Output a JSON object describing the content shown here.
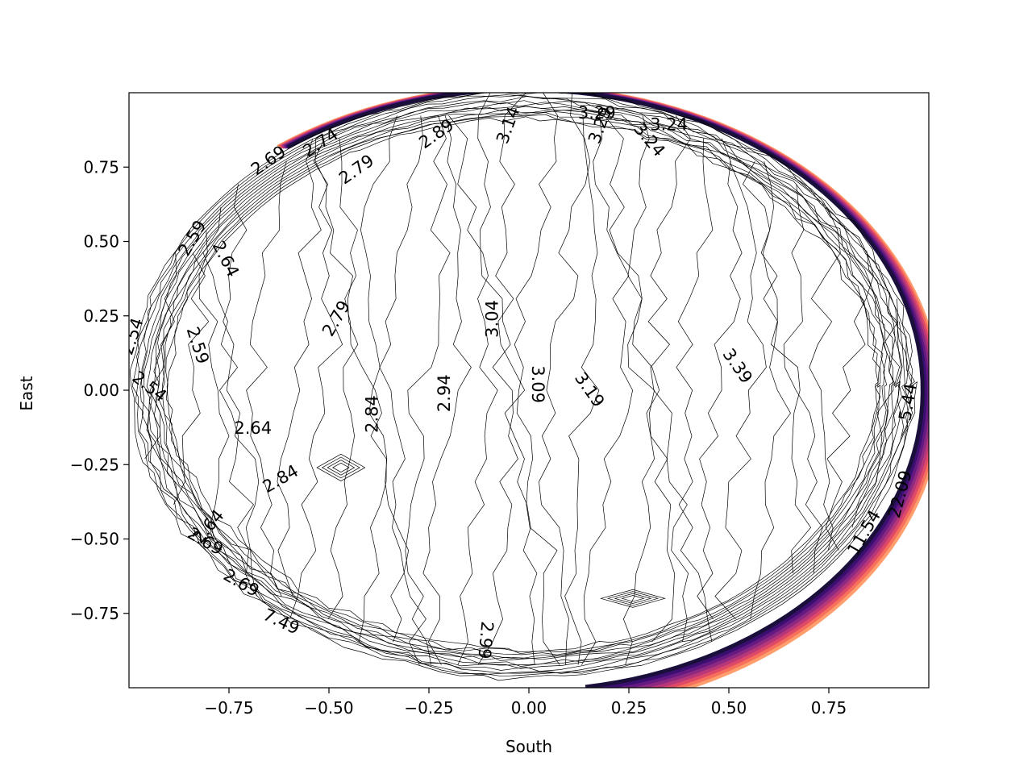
{
  "chart_data": {
    "type": "contour",
    "title": "",
    "xlabel": "South",
    "ylabel": "East",
    "xlim": [
      -1.0,
      1.0
    ],
    "ylim": [
      -1.0,
      1.0
    ],
    "x_ticks": [
      -0.75,
      -0.5,
      -0.25,
      0.0,
      0.25,
      0.5,
      0.75
    ],
    "x_tick_labels": [
      "−0.75",
      "−0.50",
      "−0.25",
      "0.00",
      "0.25",
      "0.50",
      "0.75"
    ],
    "y_ticks": [
      0.75,
      0.5,
      0.25,
      0.0,
      -0.25,
      -0.5,
      -0.75
    ],
    "y_tick_labels": [
      "0.75",
      "0.50",
      "0.25",
      "0.00",
      "−0.25",
      "−0.50",
      "−0.75"
    ],
    "grid": false,
    "legend": "none",
    "colormap": "magma",
    "line_color": "#000000",
    "edge_colors": [
      "#1a0f3a",
      "#3b0f70",
      "#641a80",
      "#8c2981",
      "#b73779",
      "#de4968",
      "#f7705c",
      "#fe9f6d"
    ],
    "contour_levels": [
      {
        "value": 2.54,
        "label": "2.54"
      },
      {
        "value": 2.59,
        "label": "2.59"
      },
      {
        "value": 2.64,
        "label": "2.64"
      },
      {
        "value": 2.69,
        "label": "2.69"
      },
      {
        "value": 2.74,
        "label": "2.74"
      },
      {
        "value": 2.79,
        "label": "2.79"
      },
      {
        "value": 2.84,
        "label": "2.84"
      },
      {
        "value": 2.89,
        "label": "2.89"
      },
      {
        "value": 2.94,
        "label": "2.94"
      },
      {
        "value": 2.99,
        "label": "2.99"
      },
      {
        "value": 3.04,
        "label": "3.04"
      },
      {
        "value": 3.09,
        "label": "3.09"
      },
      {
        "value": 3.14,
        "label": "3.14"
      },
      {
        "value": 3.19,
        "label": "3.19"
      },
      {
        "value": 3.24,
        "label": "3.24"
      },
      {
        "value": 3.29,
        "label": "3.29"
      },
      {
        "value": 3.39,
        "label": "3.39"
      },
      {
        "value": 5.44,
        "label": "5.44"
      },
      {
        "value": 7.49,
        "label": "7.49"
      },
      {
        "value": 11.54,
        "label": "11.54"
      },
      {
        "value": 22.09,
        "label": "22.09"
      }
    ],
    "contour_labels": [
      {
        "text": "2.54",
        "x": -0.99,
        "y": 0.18,
        "angle": -72
      },
      {
        "text": "2.54",
        "x": -0.95,
        "y": 0.01,
        "angle": 38
      },
      {
        "text": "2.59",
        "x": -0.84,
        "y": 0.51,
        "angle": -60
      },
      {
        "text": "2.64",
        "x": -0.76,
        "y": 0.44,
        "angle": 63
      },
      {
        "text": "2.59",
        "x": -0.83,
        "y": 0.15,
        "angle": 72
      },
      {
        "text": "2.64",
        "x": -0.69,
        "y": -0.13,
        "angle": 0
      },
      {
        "text": "2.64",
        "x": -0.8,
        "y": -0.46,
        "angle": -50
      },
      {
        "text": "2.69",
        "x": -0.81,
        "y": -0.51,
        "angle": 30
      },
      {
        "text": "2.69",
        "x": -0.72,
        "y": -0.65,
        "angle": 30
      },
      {
        "text": "2.69",
        "x": -0.65,
        "y": 0.77,
        "angle": -35
      },
      {
        "text": "2.74",
        "x": -0.52,
        "y": 0.83,
        "angle": -33
      },
      {
        "text": "2.79",
        "x": -0.43,
        "y": 0.74,
        "angle": -35
      },
      {
        "text": "2.79",
        "x": -0.48,
        "y": 0.24,
        "angle": -60
      },
      {
        "text": "2.84",
        "x": -0.39,
        "y": -0.08,
        "angle": -90
      },
      {
        "text": "2.84",
        "x": -0.62,
        "y": -0.3,
        "angle": -30
      },
      {
        "text": "2.89",
        "x": -0.23,
        "y": 0.86,
        "angle": -35
      },
      {
        "text": "2.94",
        "x": -0.21,
        "y": -0.01,
        "angle": -90
      },
      {
        "text": "2.99",
        "x": -0.11,
        "y": -0.84,
        "angle": 95
      },
      {
        "text": "3.04",
        "x": -0.09,
        "y": 0.24,
        "angle": -90
      },
      {
        "text": "3.09",
        "x": 0.02,
        "y": 0.02,
        "angle": 90
      },
      {
        "text": "3.14",
        "x": -0.05,
        "y": 0.89,
        "angle": -70
      },
      {
        "text": "3.19",
        "x": 0.15,
        "y": 0.0,
        "angle": 55
      },
      {
        "text": "3.29",
        "x": 0.17,
        "y": 0.93,
        "angle": 0
      },
      {
        "text": "3.29",
        "x": 0.18,
        "y": 0.89,
        "angle": -70
      },
      {
        "text": "3.24",
        "x": 0.35,
        "y": 0.89,
        "angle": 0
      },
      {
        "text": "3.24",
        "x": 0.3,
        "y": 0.84,
        "angle": 50
      },
      {
        "text": "3.39",
        "x": 0.52,
        "y": 0.08,
        "angle": 55
      },
      {
        "text": "5.44",
        "x": 0.95,
        "y": -0.04,
        "angle": -80
      },
      {
        "text": "22.09",
        "x": 0.93,
        "y": -0.35,
        "angle": -75
      },
      {
        "text": "11.54",
        "x": 0.84,
        "y": -0.48,
        "angle": -60
      },
      {
        "text": "7.49",
        "x": -0.62,
        "y": -0.78,
        "angle": 25
      }
    ]
  }
}
